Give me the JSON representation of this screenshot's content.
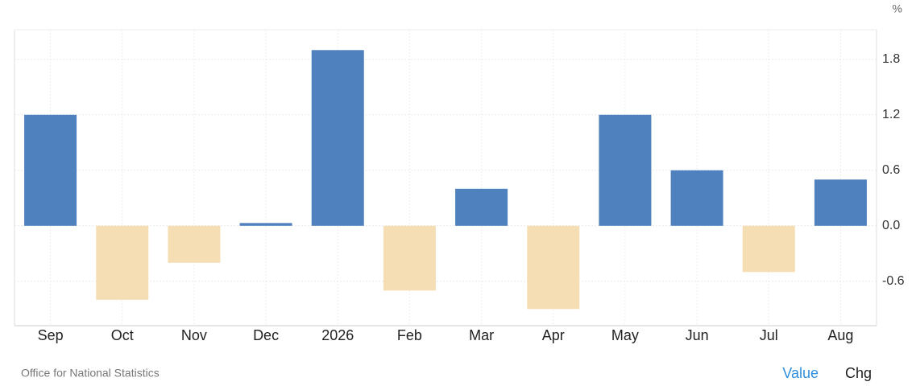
{
  "chart_data": {
    "type": "bar",
    "unit": "%",
    "categories": [
      "Sep",
      "Oct",
      "Nov",
      "Dec",
      "2026",
      "Feb",
      "Mar",
      "Apr",
      "May",
      "Jun",
      "Jul",
      "Aug"
    ],
    "values": [
      1.2,
      -0.8,
      -0.4,
      0.03,
      1.9,
      -0.7,
      0.4,
      -0.9,
      1.2,
      0.6,
      -0.5,
      0.5
    ],
    "positive_color": "#4e81bd",
    "negative_color": "#f5deb3",
    "ylim": [
      -1.08,
      2.12
    ],
    "yticks": [
      -0.6,
      {
        "value": 0,
        "label": "0.0"
      },
      0.6,
      1.2,
      1.8
    ],
    "grid": true,
    "source": "Office for National Statistics",
    "buttons": [
      "Value",
      "Chg"
    ]
  }
}
